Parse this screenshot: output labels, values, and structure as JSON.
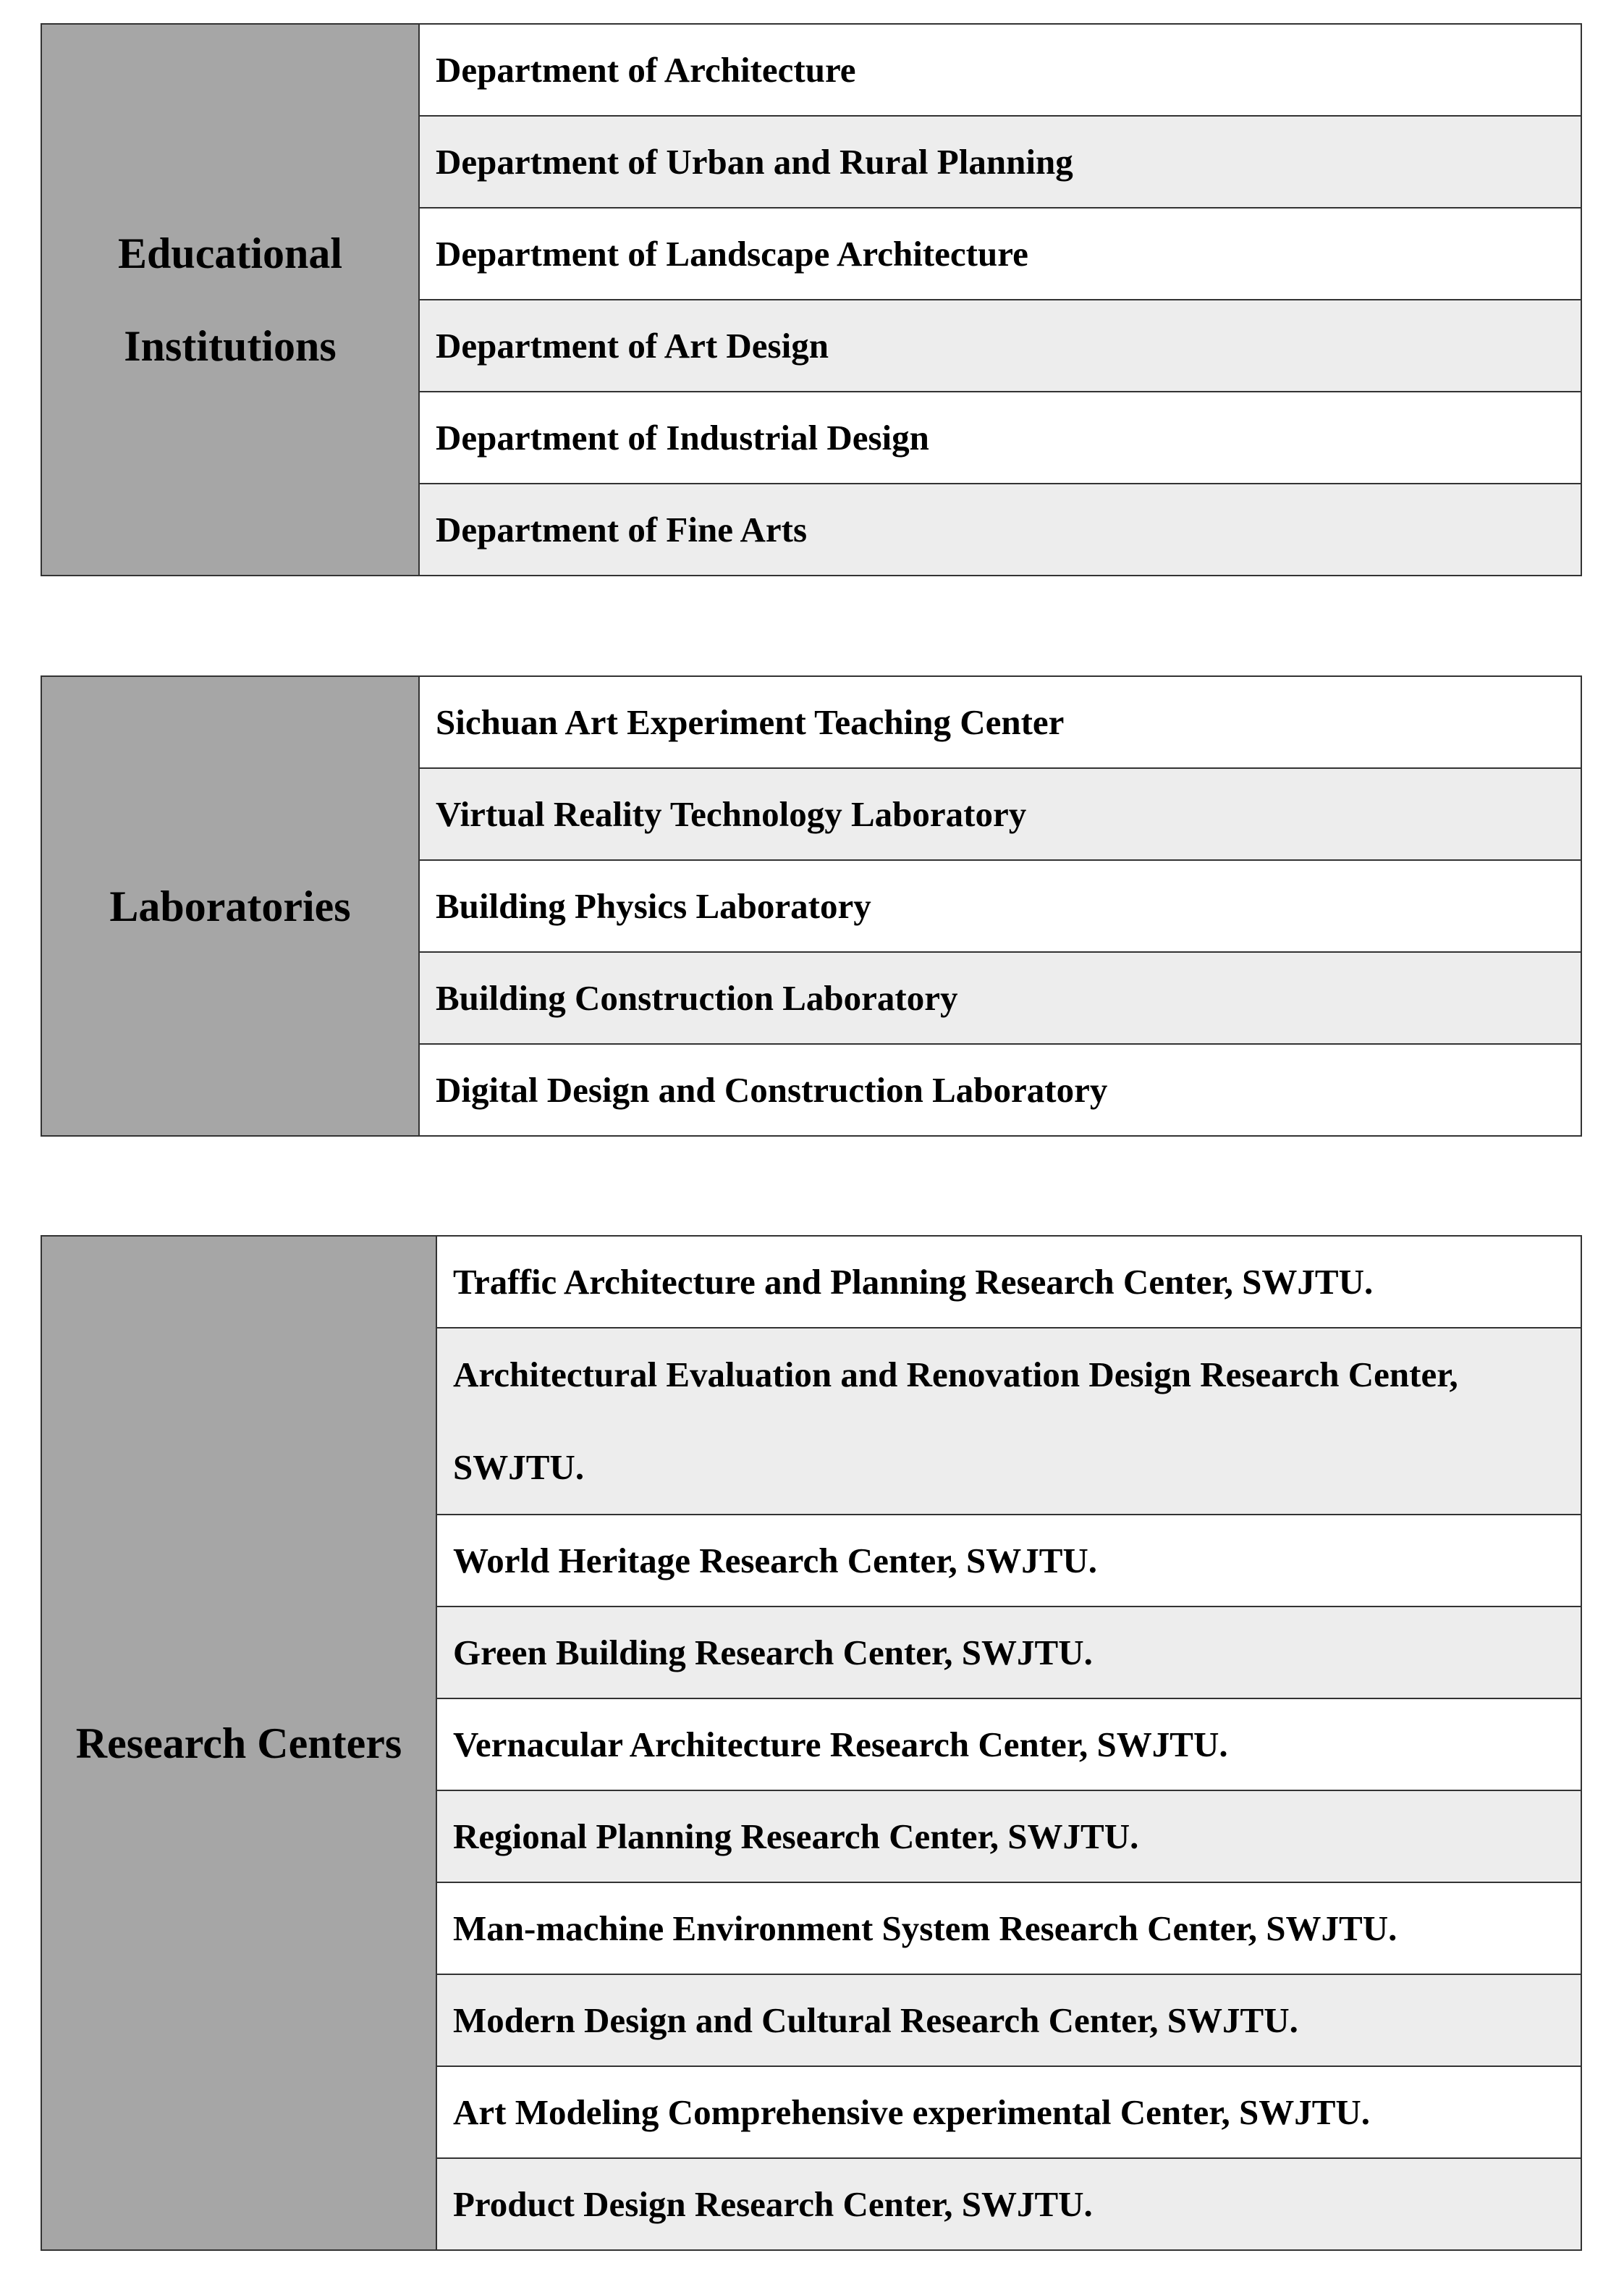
{
  "colors": {
    "label_bg": "#a6a6a6",
    "row_alt_bg": "#ededed",
    "row_bg": "#ffffff",
    "border": "#333333"
  },
  "groups": [
    {
      "label_lines": [
        "Educational",
        "Institutions"
      ],
      "items": [
        "Department of Architecture",
        "Department of Urban and Rural Planning",
        "Department of Landscape Architecture",
        "Department of Art Design",
        "Department of Industrial Design",
        "Department of Fine Arts"
      ]
    },
    {
      "label_lines": [
        "Laboratories"
      ],
      "items": [
        "Sichuan Art Experiment Teaching Center",
        "Virtual Reality Technology Laboratory",
        "Building Physics Laboratory",
        "Building Construction Laboratory",
        "Digital Design and Construction Laboratory"
      ]
    },
    {
      "label_lines": [
        "Research Centers"
      ],
      "items": [
        "Traffic Architecture and Planning Research Center, SWJTU.",
        "Architectural Evaluation and Renovation Design Research Center, SWJTU.",
        "World Heritage Research Center, SWJTU.",
        "Green Building Research Center, SWJTU.",
        "Vernacular Architecture Research Center, SWJTU.",
        "Regional Planning Research Center, SWJTU.",
        "Man-machine Environment System Research Center, SWJTU.",
        "Modern Design and Cultural Research Center, SWJTU.",
        "Art Modeling Comprehensive experimental Center, SWJTU.",
        "Product Design Research Center, SWJTU."
      ]
    }
  ]
}
